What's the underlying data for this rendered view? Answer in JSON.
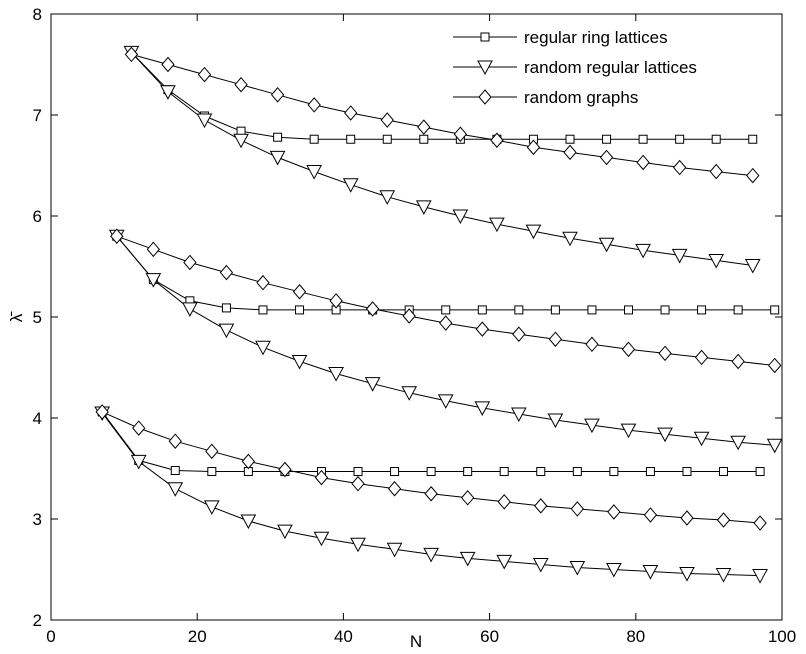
{
  "chart_data": {
    "type": "line",
    "xlabel": "N",
    "ylabel": "λ̄",
    "xlim": [
      0,
      100
    ],
    "ylim": [
      2,
      8
    ],
    "xticks": [
      0,
      20,
      40,
      60,
      80,
      100
    ],
    "yticks": [
      2,
      3,
      4,
      5,
      6,
      7,
      8
    ],
    "grid": false,
    "legend_position": "top-right",
    "legend": [
      {
        "series": "regular ring lattices",
        "marker": "square"
      },
      {
        "series": "random regular lattices",
        "marker": "triangle-down"
      },
      {
        "series": "random graphs",
        "marker": "diamond"
      }
    ],
    "series": [
      {
        "name": "regular ring lattices",
        "marker": "square",
        "group": 1,
        "x": [
          11,
          16,
          21,
          26,
          31,
          36,
          41,
          46,
          51,
          56,
          61,
          66,
          71,
          76,
          81,
          86,
          91,
          96
        ],
        "y": [
          7.62,
          7.25,
          6.99,
          6.84,
          6.78,
          6.76,
          6.76,
          6.76,
          6.76,
          6.76,
          6.76,
          6.76,
          6.76,
          6.76,
          6.76,
          6.76,
          6.76,
          6.76
        ]
      },
      {
        "name": "random regular lattices",
        "marker": "triangle-down",
        "group": 1,
        "x": [
          11,
          16,
          21,
          26,
          31,
          36,
          41,
          46,
          51,
          56,
          61,
          66,
          71,
          76,
          81,
          86,
          91,
          96
        ],
        "y": [
          7.62,
          7.23,
          6.95,
          6.75,
          6.58,
          6.44,
          6.31,
          6.19,
          6.09,
          6.0,
          5.92,
          5.85,
          5.78,
          5.72,
          5.66,
          5.61,
          5.56,
          5.51
        ]
      },
      {
        "name": "random graphs",
        "marker": "diamond",
        "group": 1,
        "x": [
          11,
          16,
          21,
          26,
          31,
          36,
          41,
          46,
          51,
          56,
          61,
          66,
          71,
          76,
          81,
          86,
          91,
          96
        ],
        "y": [
          7.6,
          7.5,
          7.4,
          7.3,
          7.2,
          7.1,
          7.02,
          6.95,
          6.88,
          6.81,
          6.75,
          6.68,
          6.63,
          6.58,
          6.53,
          6.48,
          6.44,
          6.4
        ]
      },
      {
        "name": "regular ring lattices",
        "marker": "square",
        "group": 2,
        "x": [
          9,
          14,
          19,
          24,
          29,
          34,
          39,
          44,
          49,
          54,
          59,
          64,
          69,
          74,
          79,
          84,
          89,
          94,
          99
        ],
        "y": [
          5.8,
          5.37,
          5.16,
          5.09,
          5.07,
          5.07,
          5.07,
          5.07,
          5.07,
          5.07,
          5.07,
          5.07,
          5.07,
          5.07,
          5.07,
          5.07,
          5.07,
          5.07,
          5.07
        ]
      },
      {
        "name": "random regular lattices",
        "marker": "triangle-down",
        "group": 2,
        "x": [
          9,
          14,
          19,
          24,
          29,
          34,
          39,
          44,
          49,
          54,
          59,
          64,
          69,
          74,
          79,
          84,
          89,
          94,
          99
        ],
        "y": [
          5.8,
          5.37,
          5.08,
          4.87,
          4.7,
          4.56,
          4.44,
          4.34,
          4.25,
          4.17,
          4.1,
          4.04,
          3.98,
          3.93,
          3.88,
          3.84,
          3.8,
          3.76,
          3.73
        ]
      },
      {
        "name": "random graphs",
        "marker": "diamond",
        "group": 2,
        "x": [
          9,
          14,
          19,
          24,
          29,
          34,
          39,
          44,
          49,
          54,
          59,
          64,
          69,
          74,
          79,
          84,
          89,
          94,
          99
        ],
        "y": [
          5.8,
          5.67,
          5.54,
          5.44,
          5.34,
          5.25,
          5.16,
          5.08,
          5.01,
          4.94,
          4.88,
          4.83,
          4.78,
          4.73,
          4.68,
          4.64,
          4.6,
          4.56,
          4.52
        ]
      },
      {
        "name": "regular ring lattices",
        "marker": "square",
        "group": 3,
        "x": [
          7,
          12,
          17,
          22,
          27,
          32,
          37,
          42,
          47,
          52,
          57,
          62,
          67,
          72,
          77,
          82,
          87,
          92,
          97
        ],
        "y": [
          4.06,
          3.58,
          3.48,
          3.47,
          3.47,
          3.47,
          3.47,
          3.47,
          3.47,
          3.47,
          3.47,
          3.47,
          3.47,
          3.47,
          3.47,
          3.47,
          3.47,
          3.47,
          3.47
        ]
      },
      {
        "name": "random regular lattices",
        "marker": "triangle-down",
        "group": 3,
        "x": [
          7,
          12,
          17,
          22,
          27,
          32,
          37,
          42,
          47,
          52,
          57,
          62,
          67,
          72,
          77,
          82,
          87,
          92,
          97
        ],
        "y": [
          4.05,
          3.57,
          3.3,
          3.12,
          2.98,
          2.88,
          2.81,
          2.75,
          2.7,
          2.65,
          2.61,
          2.58,
          2.55,
          2.52,
          2.5,
          2.48,
          2.46,
          2.45,
          2.44
        ]
      },
      {
        "name": "random graphs",
        "marker": "diamond",
        "group": 3,
        "x": [
          7,
          12,
          17,
          22,
          27,
          32,
          37,
          42,
          47,
          52,
          57,
          62,
          67,
          72,
          77,
          82,
          87,
          92,
          97
        ],
        "y": [
          4.06,
          3.9,
          3.77,
          3.67,
          3.57,
          3.49,
          3.41,
          3.35,
          3.3,
          3.25,
          3.21,
          3.17,
          3.13,
          3.1,
          3.07,
          3.04,
          3.01,
          2.99,
          2.96
        ]
      }
    ]
  }
}
